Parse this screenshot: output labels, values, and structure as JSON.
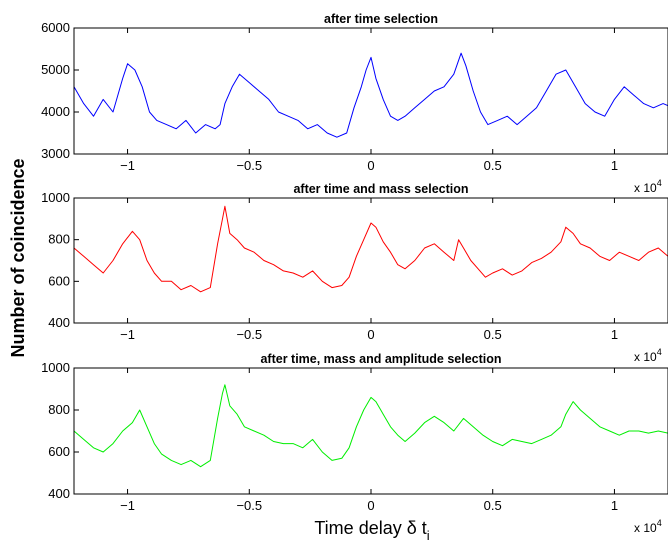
{
  "figure": {
    "ylabel": "Number of coincidence",
    "xlabel_main": "Time delay δ t",
    "xlabel_sub": "i",
    "x_multiplier_base": "x 10",
    "x_multiplier_exp": "4",
    "x_tick_labels": [
      "−1",
      "−0.5",
      "0",
      "0.5",
      "1"
    ]
  },
  "chart_data": [
    {
      "type": "line",
      "title": "after time selection",
      "color": "#0000ff",
      "xlim": [
        -1.22,
        1.22
      ],
      "ylim": [
        3000,
        6000
      ],
      "yticks": [
        3000,
        4000,
        5000,
        6000
      ],
      "ytick_labels": [
        "3000",
        "4000",
        "5000",
        "6000"
      ],
      "xticks": [
        -1,
        -0.5,
        0,
        0.5,
        1
      ],
      "series": [
        {
          "x": [
            -1.22,
            -1.18,
            -1.14,
            -1.1,
            -1.06,
            -1.02,
            -1.0,
            -0.97,
            -0.94,
            -0.91,
            -0.88,
            -0.84,
            -0.8,
            -0.76,
            -0.72,
            -0.68,
            -0.64,
            -0.62,
            -0.6,
            -0.57,
            -0.54,
            -0.5,
            -0.46,
            -0.42,
            -0.38,
            -0.34,
            -0.3,
            -0.26,
            -0.22,
            -0.18,
            -0.14,
            -0.1,
            -0.07,
            -0.04,
            -0.02,
            0.0,
            0.02,
            0.05,
            0.08,
            0.11,
            0.14,
            0.18,
            0.22,
            0.26,
            0.3,
            0.34,
            0.37,
            0.39,
            0.42,
            0.45,
            0.48,
            0.52,
            0.56,
            0.6,
            0.64,
            0.68,
            0.72,
            0.76,
            0.8,
            0.84,
            0.88,
            0.92,
            0.96,
            1.0,
            1.04,
            1.08,
            1.12,
            1.16,
            1.2,
            1.22
          ],
          "y": [
            4600,
            4200,
            3900,
            4300,
            4000,
            4800,
            5150,
            5000,
            4600,
            4000,
            3800,
            3700,
            3600,
            3800,
            3500,
            3700,
            3600,
            3700,
            4200,
            4600,
            4900,
            4700,
            4500,
            4300,
            4000,
            3900,
            3800,
            3600,
            3700,
            3500,
            3400,
            3500,
            4100,
            4600,
            5000,
            5300,
            4800,
            4300,
            3900,
            3800,
            3900,
            4100,
            4300,
            4500,
            4600,
            4900,
            5400,
            5100,
            4500,
            4000,
            3700,
            3800,
            3900,
            3700,
            3900,
            4100,
            4500,
            4900,
            5000,
            4600,
            4200,
            4000,
            3900,
            4300,
            4600,
            4400,
            4200,
            4100,
            4200,
            4150
          ]
        }
      ]
    },
    {
      "type": "line",
      "title": "after time and mass selection",
      "color": "#ff0000",
      "xlim": [
        -1.22,
        1.22
      ],
      "ylim": [
        400,
        1000
      ],
      "yticks": [
        400,
        600,
        800,
        1000
      ],
      "ytick_labels": [
        "400",
        "600",
        "800",
        "1000"
      ],
      "xticks": [
        -1,
        -0.5,
        0,
        0.5,
        1
      ],
      "series": [
        {
          "x": [
            -1.22,
            -1.18,
            -1.14,
            -1.1,
            -1.06,
            -1.02,
            -0.98,
            -0.95,
            -0.92,
            -0.89,
            -0.86,
            -0.82,
            -0.78,
            -0.74,
            -0.7,
            -0.66,
            -0.63,
            -0.61,
            -0.6,
            -0.58,
            -0.55,
            -0.52,
            -0.48,
            -0.44,
            -0.4,
            -0.36,
            -0.32,
            -0.28,
            -0.24,
            -0.2,
            -0.16,
            -0.12,
            -0.09,
            -0.06,
            -0.03,
            0.0,
            0.02,
            0.05,
            0.08,
            0.11,
            0.14,
            0.18,
            0.22,
            0.26,
            0.3,
            0.34,
            0.36,
            0.38,
            0.41,
            0.44,
            0.47,
            0.5,
            0.54,
            0.58,
            0.62,
            0.66,
            0.7,
            0.74,
            0.78,
            0.8,
            0.83,
            0.86,
            0.9,
            0.94,
            0.98,
            1.02,
            1.06,
            1.1,
            1.14,
            1.18,
            1.22
          ],
          "y": [
            760,
            720,
            680,
            640,
            700,
            780,
            840,
            800,
            700,
            640,
            600,
            600,
            560,
            580,
            550,
            570,
            780,
            900,
            960,
            830,
            800,
            760,
            740,
            700,
            680,
            650,
            640,
            620,
            650,
            600,
            570,
            580,
            620,
            720,
            800,
            880,
            860,
            790,
            740,
            680,
            660,
            700,
            760,
            780,
            740,
            700,
            800,
            760,
            700,
            660,
            620,
            640,
            660,
            630,
            650,
            690,
            710,
            740,
            790,
            860,
            830,
            780,
            760,
            720,
            700,
            740,
            720,
            700,
            740,
            760,
            720
          ]
        }
      ]
    },
    {
      "type": "line",
      "title": "after time, mass and amplitude selection",
      "color": "#00ee00",
      "xlim": [
        -1.22,
        1.22
      ],
      "ylim": [
        400,
        1000
      ],
      "yticks": [
        400,
        600,
        800,
        1000
      ],
      "ytick_labels": [
        "400",
        "600",
        "800",
        "1000"
      ],
      "xticks": [
        -1,
        -0.5,
        0,
        0.5,
        1
      ],
      "series": [
        {
          "x": [
            -1.22,
            -1.18,
            -1.14,
            -1.1,
            -1.06,
            -1.02,
            -0.98,
            -0.95,
            -0.92,
            -0.89,
            -0.86,
            -0.82,
            -0.78,
            -0.74,
            -0.7,
            -0.66,
            -0.63,
            -0.61,
            -0.6,
            -0.58,
            -0.55,
            -0.52,
            -0.48,
            -0.44,
            -0.4,
            -0.36,
            -0.32,
            -0.28,
            -0.24,
            -0.2,
            -0.16,
            -0.12,
            -0.09,
            -0.06,
            -0.03,
            0.0,
            0.02,
            0.05,
            0.08,
            0.11,
            0.14,
            0.18,
            0.22,
            0.26,
            0.3,
            0.34,
            0.38,
            0.42,
            0.46,
            0.5,
            0.54,
            0.58,
            0.62,
            0.66,
            0.7,
            0.74,
            0.78,
            0.8,
            0.83,
            0.86,
            0.9,
            0.94,
            0.98,
            1.02,
            1.06,
            1.1,
            1.14,
            1.18,
            1.22
          ],
          "y": [
            700,
            660,
            620,
            600,
            640,
            700,
            740,
            800,
            720,
            640,
            590,
            560,
            540,
            560,
            530,
            560,
            760,
            880,
            920,
            820,
            780,
            720,
            700,
            680,
            650,
            640,
            640,
            620,
            660,
            600,
            560,
            570,
            620,
            720,
            800,
            860,
            840,
            780,
            720,
            680,
            650,
            690,
            740,
            770,
            740,
            700,
            760,
            720,
            680,
            650,
            630,
            660,
            650,
            640,
            660,
            680,
            720,
            780,
            840,
            800,
            760,
            720,
            700,
            680,
            700,
            700,
            690,
            700,
            690
          ]
        }
      ]
    }
  ]
}
